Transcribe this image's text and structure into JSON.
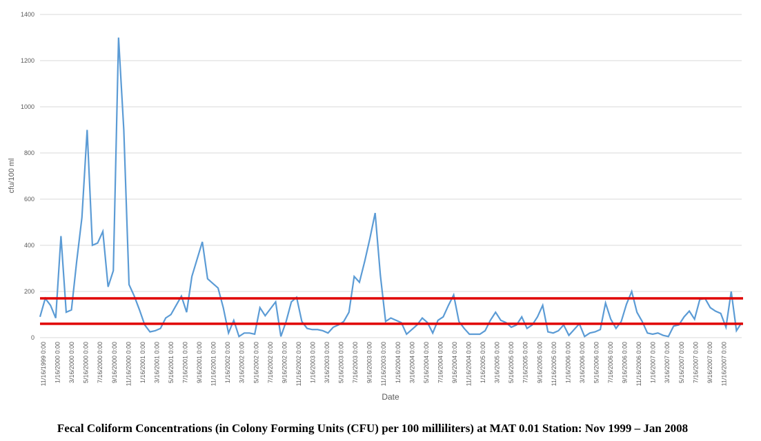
{
  "caption": "Fecal Coliform Concentrations (in Colony Forming Units (CFU) per 100 milliliters) at MAT 0.01 Station: Nov 1999 – Jan 2008",
  "chart_data": {
    "type": "line",
    "title": "",
    "xlabel": "Date",
    "ylabel": "cfu/100 ml",
    "ylim": [
      0,
      1400
    ],
    "yticks": [
      0,
      200,
      400,
      600,
      800,
      1000,
      1200,
      1400
    ],
    "grid": true,
    "legend": "none",
    "colors": {
      "series": "#5b9bd5",
      "reference": "#e00000",
      "grid": "#d9d9d9",
      "tick_text": "#595959"
    },
    "xtick_labels": [
      "11/16/1999 0:00",
      "1/16/2000 0:00",
      "3/16/2000 0:00",
      "5/16/2000 0:00",
      "7/16/2000 0:00",
      "9/16/2000 0:00",
      "11/16/2000 0:00",
      "1/16/2001 0:00",
      "3/16/2001 0:00",
      "5/16/2001 0:00",
      "7/16/2001 0:00",
      "9/16/2001 0:00",
      "11/16/2001 0:00",
      "1/16/2002 0:00",
      "3/16/2002 0:00",
      "5/16/2002 0:00",
      "7/16/2002 0:00",
      "9/16/2002 0:00",
      "11/16/2002 0:00",
      "1/16/2003 0:00",
      "3/16/2003 0:00",
      "5/16/2003 0:00",
      "7/16/2003 0:00",
      "9/16/2003 0:00",
      "11/16/2003 0:00",
      "1/16/2004 0:00",
      "3/16/2004 0:00",
      "5/16/2004 0:00",
      "7/16/2004 0:00",
      "9/16/2004 0:00",
      "11/16/2004 0:00",
      "1/16/2005 0:00",
      "3/16/2005 0:00",
      "5/16/2005 0:00",
      "7/16/2005 0:00",
      "9/16/2005 0:00",
      "11/16/2005 0:00",
      "1/16/2006 0:00",
      "3/16/2006 0:00",
      "5/16/2006 0:00",
      "7/16/2006 0:00",
      "9/16/2006 0:00",
      "11/16/2006 0:00",
      "1/16/2007 0:00",
      "3/16/2007 0:00",
      "5/16/2007 0:00",
      "7/16/2007 0:00",
      "9/16/2007 0:00",
      "11/16/2007 0:00"
    ],
    "series": [
      {
        "values": [
          90,
          170,
          140,
          85,
          440,
          110,
          120,
          330,
          520,
          900,
          400,
          410,
          460,
          220,
          290,
          1300,
          900,
          230,
          180,
          120,
          55,
          25,
          30,
          40,
          85,
          100,
          140,
          180,
          110,
          265,
          340,
          415,
          255,
          235,
          215,
          130,
          20,
          75,
          5,
          20,
          20,
          15,
          130,
          95,
          125,
          155,
          5,
          70,
          155,
          175,
          70,
          40,
          35,
          35,
          30,
          20,
          45,
          55,
          70,
          110,
          265,
          240,
          330,
          430,
          540,
          270,
          70,
          85,
          75,
          65,
          15,
          35,
          55,
          85,
          65,
          20,
          75,
          90,
          140,
          185,
          70,
          40,
          15,
          15,
          15,
          30,
          75,
          110,
          75,
          65,
          45,
          55,
          90,
          40,
          55,
          90,
          140,
          25,
          20,
          30,
          55,
          10,
          35,
          60,
          5,
          20,
          25,
          35,
          150,
          80,
          40,
          70,
          145,
          200,
          110,
          70,
          20,
          15,
          20,
          10,
          5,
          50,
          55,
          90,
          115,
          80,
          165,
          170,
          130,
          115,
          105,
          45,
          200,
          30,
          65
        ]
      }
    ],
    "reference_lines": [
      {
        "y": 170
      },
      {
        "y": 60
      }
    ]
  }
}
